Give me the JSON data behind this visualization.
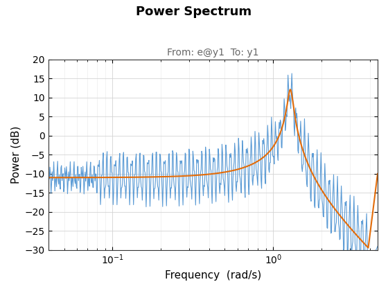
{
  "title": "Power Spectrum",
  "subtitle": "From: e@y1  To: y1",
  "xlabel": "Frequency  (rad/s)",
  "ylabel": "Power (dB)",
  "ylim": [
    -30,
    20
  ],
  "xlim_log_min": -1.4,
  "xlim_log_max": 0.65,
  "yticks": [
    -30,
    -25,
    -20,
    -15,
    -10,
    -5,
    0,
    5,
    10,
    15,
    20
  ],
  "line_per_color": "#5B9BD5",
  "line_sp_color": "#E36C09",
  "title_fontsize": 13,
  "subtitle_fontsize": 10,
  "axis_fontsize": 11,
  "tick_fontsize": 10,
  "omega_n": 1.28,
  "zeta": 0.035,
  "base_db": -11.0
}
